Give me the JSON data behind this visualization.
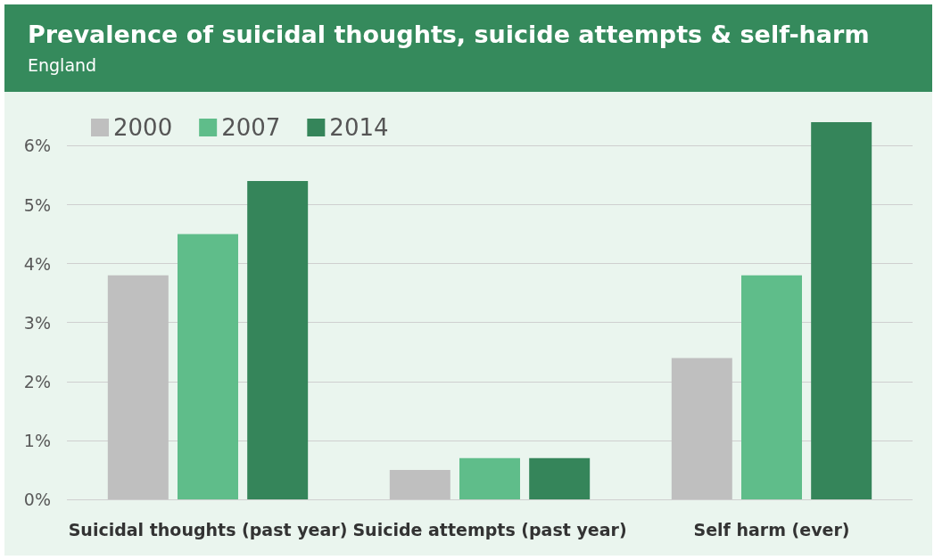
{
  "chart_data": {
    "type": "bar",
    "title": "Prevalence of suicidal thoughts, suicide attempts & self-harm",
    "subtitle": "England",
    "categories": [
      "Suicidal thoughts (past year)",
      "Suicide attempts (past year)",
      "Self harm (ever)"
    ],
    "series": [
      {
        "name": "2000",
        "color": "#bfbfbf",
        "values": [
          3.8,
          0.5,
          2.4
        ]
      },
      {
        "name": "2007",
        "color": "#5fbd8a",
        "values": [
          4.5,
          0.7,
          3.8
        ]
      },
      {
        "name": "2014",
        "color": "#35855a",
        "values": [
          5.4,
          0.7,
          6.4
        ]
      }
    ],
    "yticks": [
      {
        "value": 0,
        "label": "0%"
      },
      {
        "value": 1,
        "label": "1%"
      },
      {
        "value": 2,
        "label": "2%"
      },
      {
        "value": 3,
        "label": "3%"
      },
      {
        "value": 4,
        "label": "4%"
      },
      {
        "value": 5,
        "label": "5%"
      },
      {
        "value": 6,
        "label": "6%"
      }
    ],
    "ylim": [
      0,
      6.4
    ],
    "grid": "y",
    "legend": "top left"
  }
}
